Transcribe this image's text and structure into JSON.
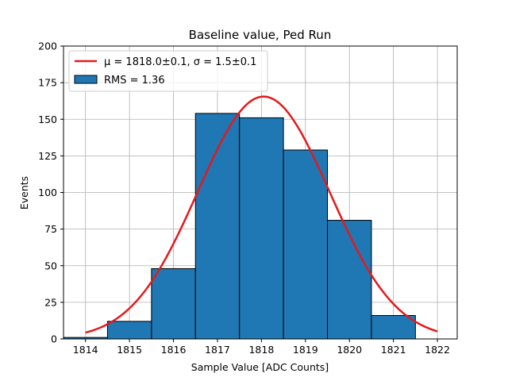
{
  "chart_data": {
    "type": "bar",
    "title": "Baseline value, Ped Run",
    "xlabel": "Sample Value [ADC Counts]",
    "ylabel": "Events",
    "xlim": [
      1813.5,
      1822.45
    ],
    "ylim": [
      0,
      200
    ],
    "xticks": [
      1814,
      1815,
      1816,
      1817,
      1818,
      1819,
      1820,
      1821,
      1822
    ],
    "yticks": [
      0,
      25,
      50,
      75,
      100,
      125,
      150,
      175,
      200
    ],
    "grid": true,
    "legend_position": "top-left",
    "histogram": {
      "name": "RMS = 1.36",
      "color": "#1f77b4",
      "edge_color": "#000000",
      "bin_width": 1,
      "bins": [
        {
          "x": 1814,
          "count": 1
        },
        {
          "x": 1815,
          "count": 12
        },
        {
          "x": 1816,
          "count": 48
        },
        {
          "x": 1817,
          "count": 154
        },
        {
          "x": 1818,
          "count": 151
        },
        {
          "x": 1819,
          "count": 129
        },
        {
          "x": 1820,
          "count": 81
        },
        {
          "x": 1821,
          "count": 16
        }
      ]
    },
    "fit": {
      "name": "μ = 1818.0±0.1, σ = 1.5±0.1",
      "color": "#e41a1c",
      "mu": 1818.05,
      "sigma": 1.5,
      "amplitude": 165.5,
      "x_range": [
        1814,
        1822
      ]
    }
  }
}
